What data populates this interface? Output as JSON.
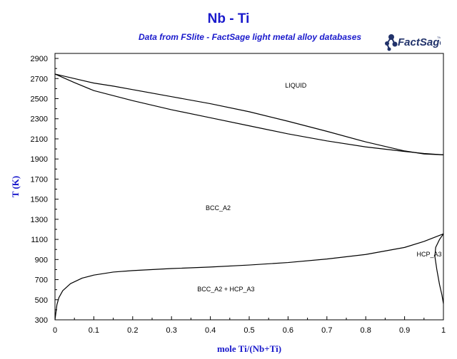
{
  "header": {
    "title": "Nb - Ti",
    "subtitle": "Data from FSlite - FactSage light metal alloy databases",
    "logo_text": "FactSage",
    "logo_tm": "TM"
  },
  "colors": {
    "title": "#1a1acc",
    "curve": "#000000",
    "logo": "#22336b"
  },
  "chart_data": {
    "type": "line",
    "xlabel": "mole Ti/(Nb+Ti)",
    "ylabel": "T (K)",
    "xlim": [
      0,
      1
    ],
    "ylim": [
      300,
      2950
    ],
    "x_ticks": [
      "0",
      "0.1",
      "0.2",
      "0.3",
      "0.4",
      "0.5",
      "0.6",
      "0.7",
      "0.8",
      "0.9",
      "1"
    ],
    "y_ticks": [
      "300",
      "500",
      "700",
      "900",
      "1100",
      "1300",
      "1500",
      "1700",
      "1900",
      "2100",
      "2300",
      "2500",
      "2700",
      "2900"
    ],
    "regions": [
      {
        "label": "LIQUID",
        "x": 0.62,
        "y": 2610
      },
      {
        "label": "BCC_A2",
        "x": 0.42,
        "y": 1390
      },
      {
        "label": "BCC_A2 + HCP_A3",
        "x": 0.44,
        "y": 585
      },
      {
        "label": "HCP_A3",
        "x": 1.0,
        "y": 930
      }
    ],
    "series": [
      {
        "values": [
          [
            0,
            2745
          ],
          [
            0.05,
            2700
          ],
          [
            0.1,
            2655
          ],
          [
            0.15,
            2625
          ],
          [
            0.2,
            2590
          ],
          [
            0.3,
            2520
          ],
          [
            0.4,
            2450
          ],
          [
            0.5,
            2370
          ],
          [
            0.6,
            2275
          ],
          [
            0.7,
            2175
          ],
          [
            0.8,
            2070
          ],
          [
            0.9,
            1980
          ],
          [
            0.95,
            1950
          ],
          [
            1.0,
            1941
          ]
        ]
      },
      {
        "values": [
          [
            0,
            2745
          ],
          [
            0.05,
            2660
          ],
          [
            0.1,
            2580
          ],
          [
            0.2,
            2480
          ],
          [
            0.3,
            2390
          ],
          [
            0.4,
            2310
          ],
          [
            0.5,
            2230
          ],
          [
            0.6,
            2150
          ],
          [
            0.7,
            2080
          ],
          [
            0.8,
            2020
          ],
          [
            0.9,
            1975
          ],
          [
            0.95,
            1955
          ],
          [
            1.0,
            1941
          ]
        ]
      },
      {
        "values": [
          [
            0,
            300
          ],
          [
            0.005,
            450
          ],
          [
            0.01,
            520
          ],
          [
            0.02,
            590
          ],
          [
            0.04,
            660
          ],
          [
            0.07,
            715
          ],
          [
            0.1,
            745
          ],
          [
            0.15,
            775
          ],
          [
            0.2,
            790
          ],
          [
            0.3,
            810
          ],
          [
            0.4,
            825
          ],
          [
            0.5,
            845
          ],
          [
            0.6,
            870
          ],
          [
            0.7,
            905
          ],
          [
            0.8,
            950
          ],
          [
            0.9,
            1020
          ],
          [
            0.95,
            1080
          ],
          [
            1.0,
            1155
          ]
        ]
      },
      {
        "values": [
          [
            1.0,
            1155
          ],
          [
            0.99,
            1100
          ],
          [
            0.98,
            1020
          ],
          [
            0.978,
            930
          ],
          [
            0.983,
            800
          ],
          [
            0.99,
            650
          ],
          [
            0.996,
            550
          ],
          [
            1.0,
            460
          ]
        ]
      }
    ]
  }
}
